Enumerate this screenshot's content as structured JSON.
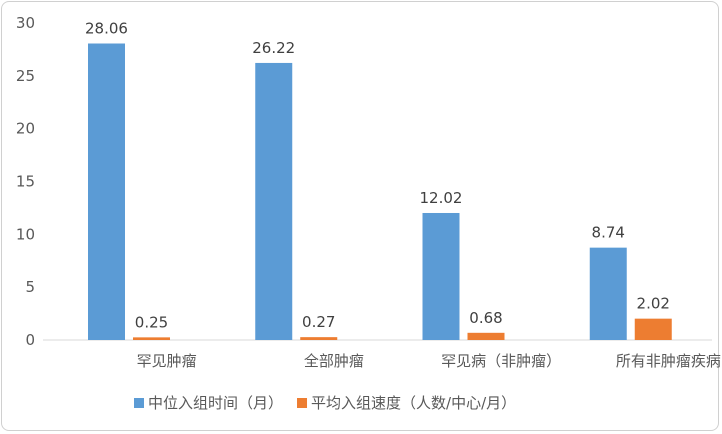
{
  "chart_data": {
    "type": "bar",
    "title": "",
    "xlabel": "",
    "ylabel": "",
    "ylim": [
      0,
      30
    ],
    "yticks": [
      0,
      5,
      10,
      15,
      20,
      25,
      30
    ],
    "grid": false,
    "legend_position": "bottom",
    "categories": [
      "罕见肿瘤",
      "全部肿瘤",
      "罕见病（非肿瘤）",
      "所有非肿瘤疾病"
    ],
    "series": [
      {
        "name": "中位入组时间（月）",
        "values": [
          28.06,
          26.22,
          12.02,
          8.74
        ],
        "labels": [
          "28.06",
          "26.22",
          "12.02",
          "8.74"
        ],
        "color": "#5b9bd5"
      },
      {
        "name": "平均入组速度（人数/中心/月）",
        "values": [
          0.25,
          0.27,
          0.68,
          2.02
        ],
        "labels": [
          "0.25",
          "0.27",
          "0.68",
          "2.02"
        ],
        "color": "#ed7d31"
      }
    ]
  }
}
